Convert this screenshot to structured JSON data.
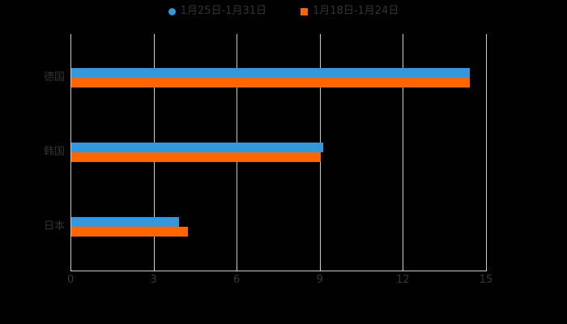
{
  "background_color": "#000000",
  "text_color": "#333333",
  "grid_color": "#cccccc",
  "chart_data": {
    "type": "bar",
    "orientation": "horizontal",
    "title": "",
    "xlabel": "",
    "ylabel": "",
    "categories": [
      "德国",
      "韩国",
      "日本"
    ],
    "series": [
      {
        "name": "1月25日-1月31日",
        "color": "#3398db",
        "marker": "circle",
        "values": [
          14.4,
          9.1,
          3.9
        ]
      },
      {
        "name": "1月18日-1月24日",
        "color": "#ff6600",
        "marker": "square",
        "values": [
          14.4,
          9.0,
          4.2
        ]
      }
    ],
    "xlim": [
      0,
      15
    ],
    "x_ticks": [
      0,
      3,
      6,
      9,
      12,
      15
    ],
    "grid": true,
    "legend_position": "top"
  }
}
